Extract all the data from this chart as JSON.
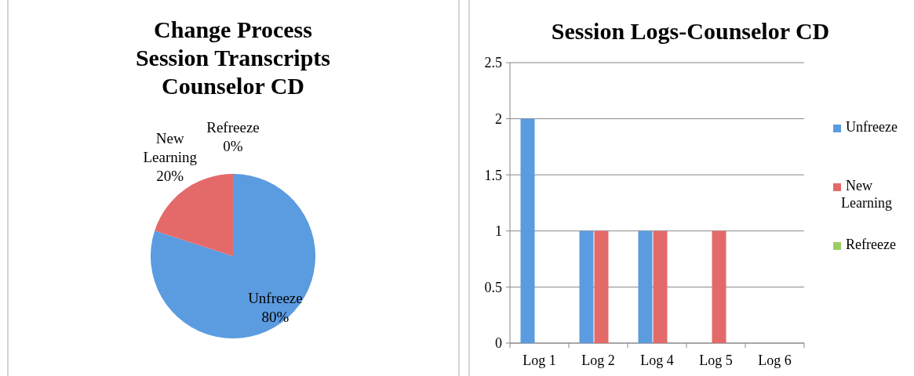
{
  "chart_data": [
    {
      "type": "pie",
      "title": "Change Process\nSession Transcripts\nCounselor CD",
      "categories": [
        "Unfreeze",
        "New Learning",
        "Refreeze"
      ],
      "values": [
        80,
        20,
        0
      ],
      "colors": [
        "#5b9be0",
        "#e46a6a",
        "#9ccc65"
      ],
      "value_labels": [
        "80%",
        "20%",
        "0%"
      ]
    },
    {
      "type": "bar",
      "title": "Session Logs-Counselor CD",
      "categories": [
        "Log 1",
        "Log 2",
        "Log 4",
        "Log 5",
        "Log 6"
      ],
      "series": [
        {
          "name": "Unfreeze",
          "color": "#5b9be0",
          "values": [
            2,
            1,
            1,
            0,
            0
          ]
        },
        {
          "name": "New Learning",
          "color": "#e46a6a",
          "values": [
            0,
            1,
            1,
            1,
            0
          ]
        },
        {
          "name": "Refreeze",
          "color": "#9ccc65",
          "values": [
            0,
            0,
            0,
            0,
            0
          ]
        }
      ],
      "ylim": [
        0,
        2.5
      ],
      "yticks": [
        0,
        0.5,
        1,
        1.5,
        2,
        2.5
      ],
      "grid": "y",
      "legend": "right"
    }
  ]
}
